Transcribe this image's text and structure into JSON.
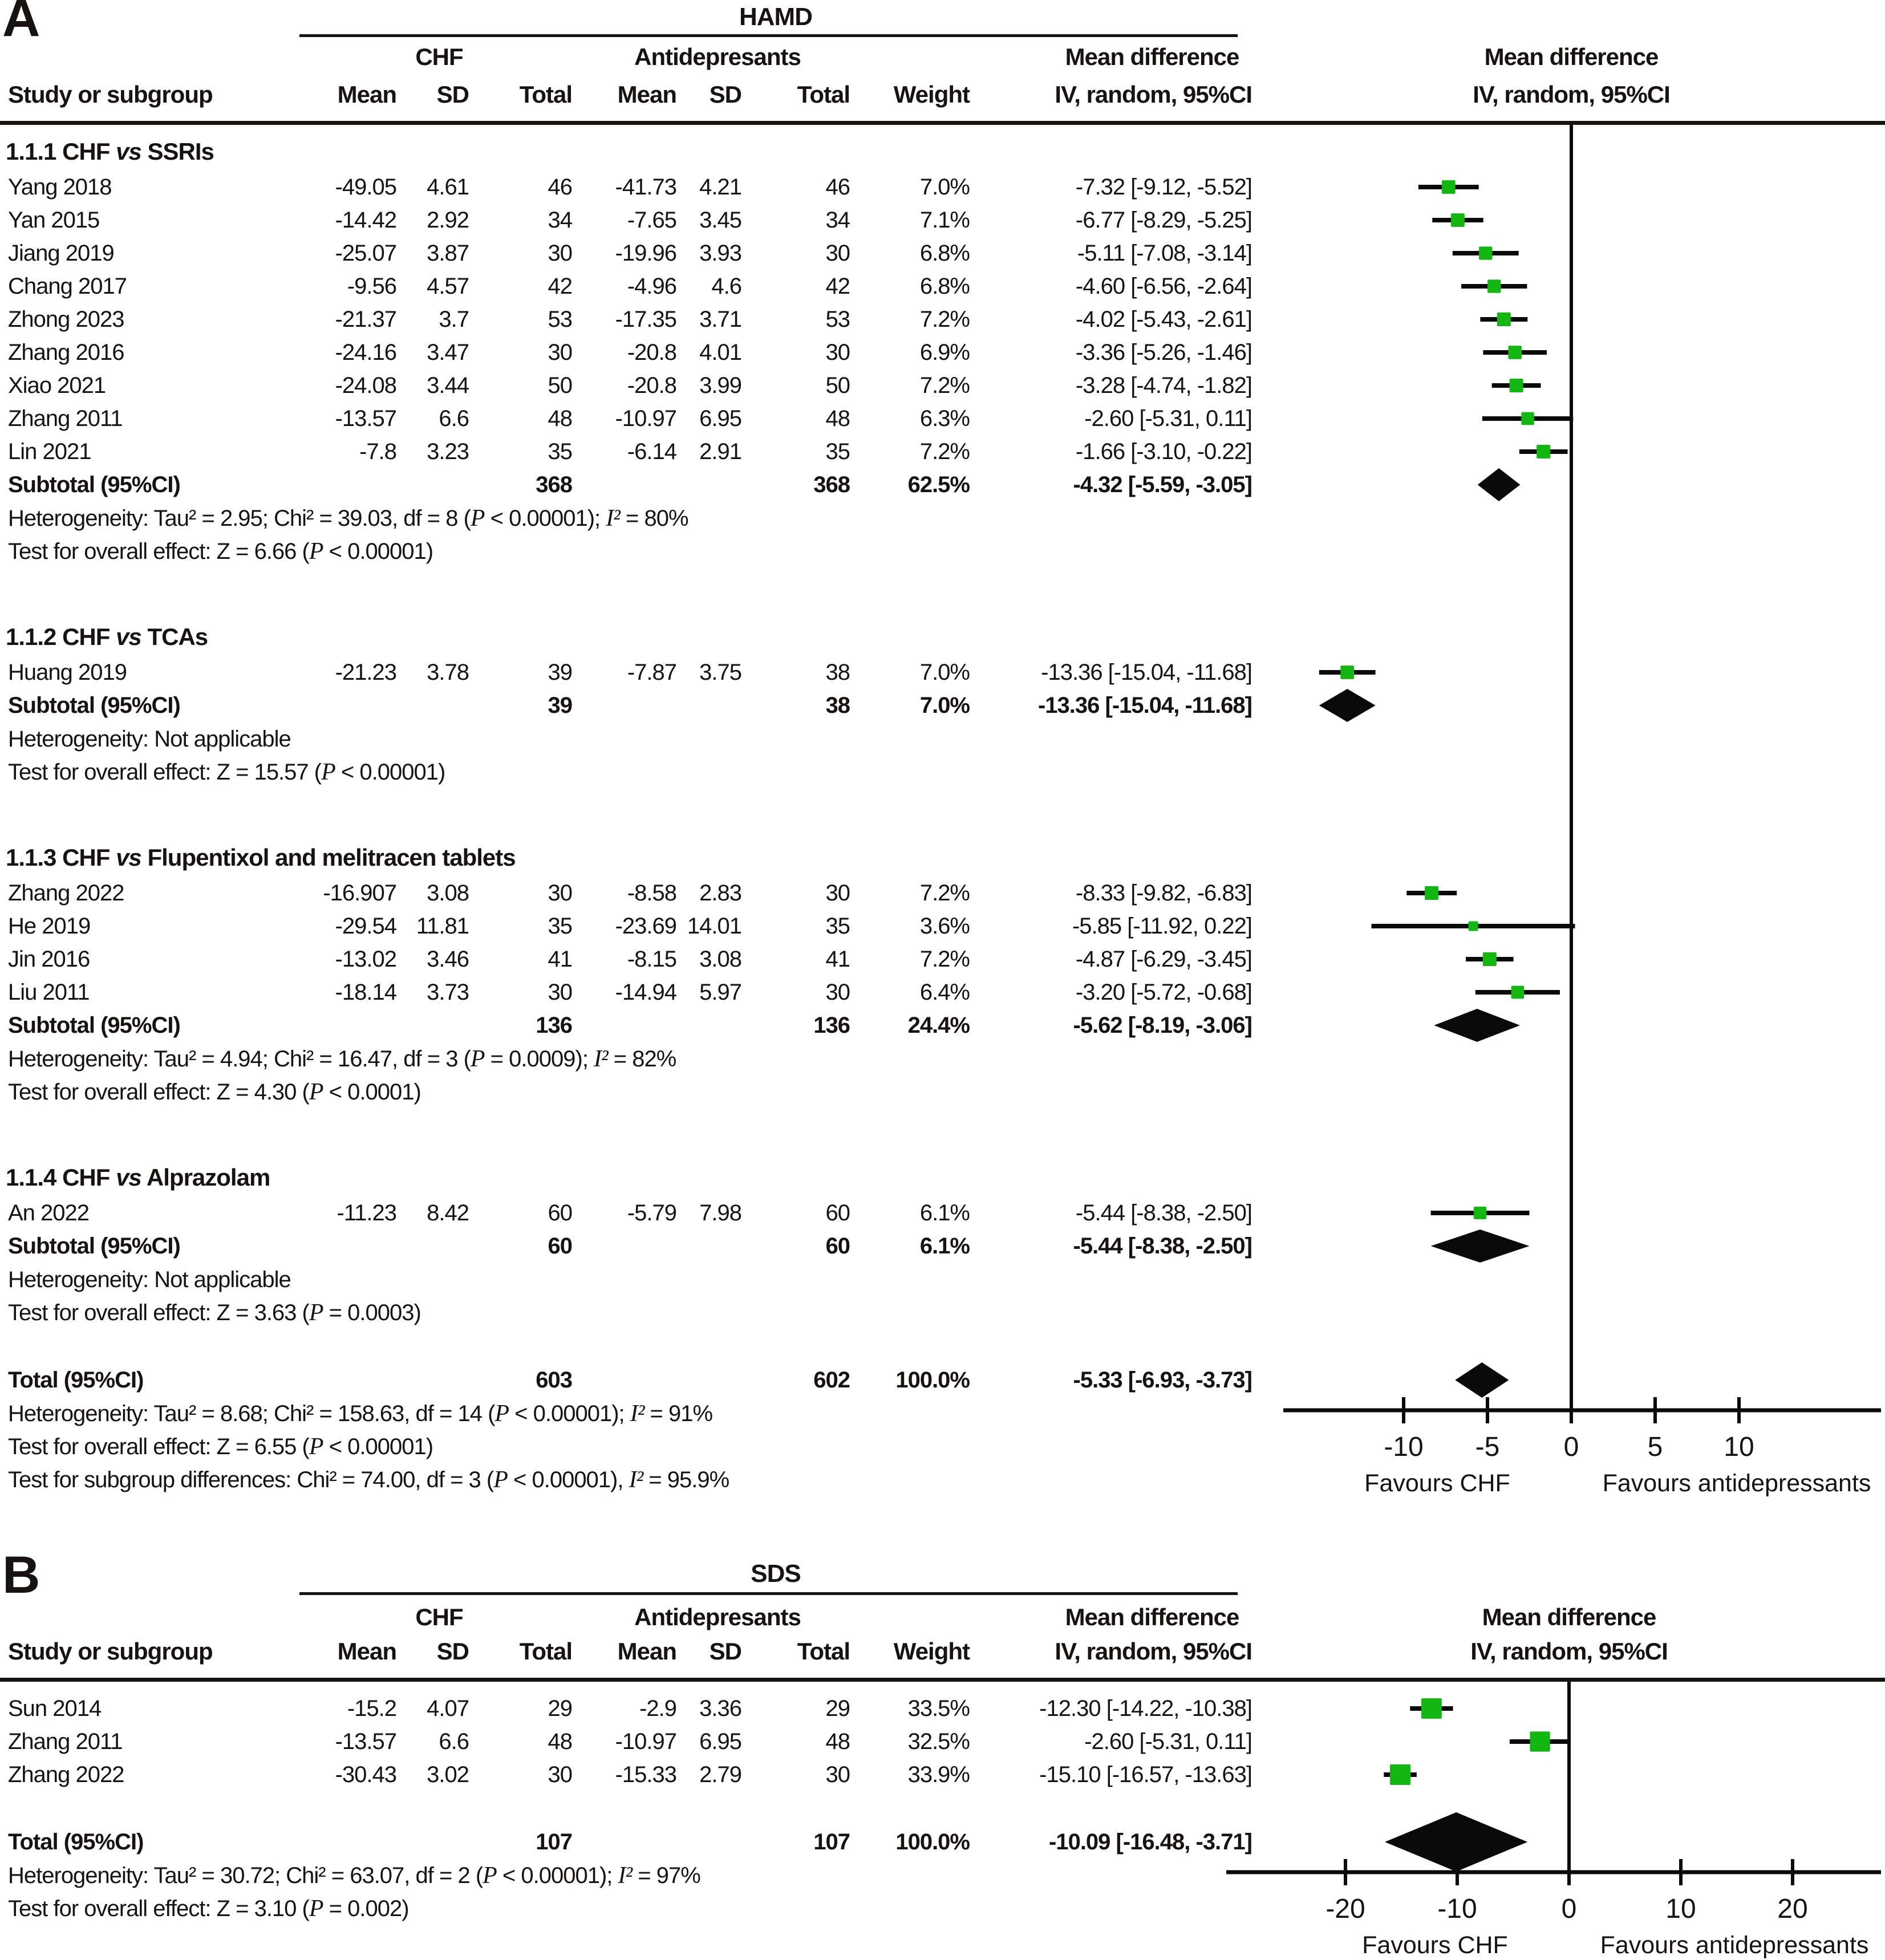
{
  "colors": {
    "marker_green": "#12b712",
    "shape_black": "#0a0a0a",
    "text": "#181310"
  },
  "chart_data": [
    {
      "type": "forest",
      "panel_label": "A",
      "title": "HAMD",
      "col_groups": {
        "exp": "CHF",
        "ctrl": "Antidepresants",
        "effect": "Mean difference"
      },
      "plot_header": [
        "Mean difference",
        "IV, random, 95%CI"
      ],
      "columns": [
        "Study or subgroup",
        "Mean",
        "SD",
        "Total",
        "Mean",
        "SD",
        "Total",
        "Weight",
        "IV, random, 95%CI"
      ],
      "axis": {
        "ticks": [
          -10,
          -5,
          0,
          5,
          10
        ],
        "favours_left": "Favours CHF",
        "favours_right": "Favours antidepressants"
      },
      "sections": [
        {
          "title": "1.1.1 CHF vs SSRIs",
          "studies": [
            {
              "study": "Yang 2018",
              "mean1": "-49.05",
              "sd1": "4.61",
              "n1": "46",
              "mean2": "-41.73",
              "sd2": "4.21",
              "n2": "46",
              "weight": "7.0%",
              "ci": "-7.32 [-9.12, -5.52]",
              "est": -7.32,
              "lo": -9.12,
              "hi": -5.52
            },
            {
              "study": "Yan 2015",
              "mean1": "-14.42",
              "sd1": "2.92",
              "n1": "34",
              "mean2": "-7.65",
              "sd2": "3.45",
              "n2": "34",
              "weight": "7.1%",
              "ci": "-6.77 [-8.29, -5.25]",
              "est": -6.77,
              "lo": -8.29,
              "hi": -5.25
            },
            {
              "study": "Jiang 2019",
              "mean1": "-25.07",
              "sd1": "3.87",
              "n1": "30",
              "mean2": "-19.96",
              "sd2": "3.93",
              "n2": "30",
              "weight": "6.8%",
              "ci": "-5.11 [-7.08, -3.14]",
              "est": -5.11,
              "lo": -7.08,
              "hi": -3.14
            },
            {
              "study": "Chang 2017",
              "mean1": "-9.56",
              "sd1": "4.57",
              "n1": "42",
              "mean2": "-4.96",
              "sd2": "4.6",
              "n2": "42",
              "weight": "6.8%",
              "ci": "-4.60 [-6.56, -2.64]",
              "est": -4.6,
              "lo": -6.56,
              "hi": -2.64
            },
            {
              "study": "Zhong 2023",
              "mean1": "-21.37",
              "sd1": "3.7",
              "n1": "53",
              "mean2": "-17.35",
              "sd2": "3.71",
              "n2": "53",
              "weight": "7.2%",
              "ci": "-4.02 [-5.43, -2.61]",
              "est": -4.02,
              "lo": -5.43,
              "hi": -2.61
            },
            {
              "study": "Zhang 2016",
              "mean1": "-24.16",
              "sd1": "3.47",
              "n1": "30",
              "mean2": "-20.8",
              "sd2": "4.01",
              "n2": "30",
              "weight": "6.9%",
              "ci": "-3.36 [-5.26, -1.46]",
              "est": -3.36,
              "lo": -5.26,
              "hi": -1.46
            },
            {
              "study": "Xiao 2021",
              "mean1": "-24.08",
              "sd1": "3.44",
              "n1": "50",
              "mean2": "-20.8",
              "sd2": "3.99",
              "n2": "50",
              "weight": "7.2%",
              "ci": "-3.28 [-4.74, -1.82]",
              "est": -3.28,
              "lo": -4.74,
              "hi": -1.82
            },
            {
              "study": "Zhang 2011",
              "mean1": "-13.57",
              "sd1": "6.6",
              "n1": "48",
              "mean2": "-10.97",
              "sd2": "6.95",
              "n2": "48",
              "weight": "6.3%",
              "ci": "-2.60 [-5.31, 0.11]",
              "est": -2.6,
              "lo": -5.31,
              "hi": 0.11
            },
            {
              "study": "Lin 2021",
              "mean1": "-7.8",
              "sd1": "3.23",
              "n1": "35",
              "mean2": "-6.14",
              "sd2": "2.91",
              "n2": "35",
              "weight": "7.2%",
              "ci": "-1.66 [-3.10, -0.22]",
              "est": -1.66,
              "lo": -3.1,
              "hi": -0.22
            }
          ],
          "subtotal": {
            "label": "Subtotal (95%CI)",
            "n1": "368",
            "n2": "368",
            "weight": "62.5%",
            "ci": "-4.32 [-5.59, -3.05]",
            "est": -4.32,
            "lo": -5.59,
            "hi": -3.05
          },
          "heterogeneity": "Heterogeneity: Tau² = 2.95; Chi² = 39.03, df = 8 (P < 0.00001); I² = 80%",
          "overall": "Test for overall effect: Z = 6.66 (P < 0.00001)"
        },
        {
          "title": "1.1.2 CHF vs TCAs",
          "studies": [
            {
              "study": "Huang 2019",
              "mean1": "-21.23",
              "sd1": "3.78",
              "n1": "39",
              "mean2": "-7.87",
              "sd2": "3.75",
              "n2": "38",
              "weight": "7.0%",
              "ci": "-13.36 [-15.04, -11.68]",
              "est": -13.36,
              "lo": -15.04,
              "hi": -11.68
            }
          ],
          "subtotal": {
            "label": "Subtotal (95%CI)",
            "n1": "39",
            "n2": "38",
            "weight": "7.0%",
            "ci": "-13.36 [-15.04, -11.68]",
            "est": -13.36,
            "lo": -15.04,
            "hi": -11.68
          },
          "heterogeneity": "Heterogeneity: Not applicable",
          "overall": "Test for overall effect: Z = 15.57 (P < 0.00001)"
        },
        {
          "title": "1.1.3 CHF vs Flupentixol and melitracen tablets",
          "studies": [
            {
              "study": "Zhang 2022",
              "mean1": "-16.907",
              "sd1": "3.08",
              "n1": "30",
              "mean2": "-8.58",
              "sd2": "2.83",
              "n2": "30",
              "weight": "7.2%",
              "ci": "-8.33 [-9.82, -6.83]",
              "est": -8.33,
              "lo": -9.82,
              "hi": -6.83
            },
            {
              "study": "He 2019",
              "mean1": "-29.54",
              "sd1": "11.81",
              "n1": "35",
              "mean2": "-23.69",
              "sd2": "14.01",
              "n2": "35",
              "weight": "3.6%",
              "ci": "-5.85 [-11.92, 0.22]",
              "est": -5.85,
              "lo": -11.92,
              "hi": 0.22
            },
            {
              "study": "Jin 2016",
              "mean1": "-13.02",
              "sd1": "3.46",
              "n1": "41",
              "mean2": "-8.15",
              "sd2": "3.08",
              "n2": "41",
              "weight": "7.2%",
              "ci": "-4.87 [-6.29, -3.45]",
              "est": -4.87,
              "lo": -6.29,
              "hi": -3.45
            },
            {
              "study": "Liu 2011",
              "mean1": "-18.14",
              "sd1": "3.73",
              "n1": "30",
              "mean2": "-14.94",
              "sd2": "5.97",
              "n2": "30",
              "weight": "6.4%",
              "ci": "-3.20 [-5.72, -0.68]",
              "est": -3.2,
              "lo": -5.72,
              "hi": -0.68
            }
          ],
          "subtotal": {
            "label": "Subtotal (95%CI)",
            "n1": "136",
            "n2": "136",
            "weight": "24.4%",
            "ci": "-5.62 [-8.19, -3.06]",
            "est": -5.62,
            "lo": -8.19,
            "hi": -3.06
          },
          "heterogeneity": "Heterogeneity: Tau² = 4.94; Chi² = 16.47, df = 3 (P = 0.0009); I² = 82%",
          "overall": "Test for overall effect: Z = 4.30 (P < 0.0001)"
        },
        {
          "title": "1.1.4 CHF vs Alprazolam",
          "studies": [
            {
              "study": "An 2022",
              "mean1": "-11.23",
              "sd1": "8.42",
              "n1": "60",
              "mean2": "-5.79",
              "sd2": "7.98",
              "n2": "60",
              "weight": "6.1%",
              "ci": "-5.44 [-8.38, -2.50]",
              "est": -5.44,
              "lo": -8.38,
              "hi": -2.5
            }
          ],
          "subtotal": {
            "label": "Subtotal (95%CI)",
            "n1": "60",
            "n2": "60",
            "weight": "6.1%",
            "ci": "-5.44 [-8.38, -2.50]",
            "est": -5.44,
            "lo": -8.38,
            "hi": -2.5
          },
          "heterogeneity": "Heterogeneity: Not applicable",
          "overall": "Test for overall effect: Z = 3.63 (P = 0.0003)"
        }
      ],
      "total": {
        "label": "Total (95%CI)",
        "n1": "603",
        "n2": "602",
        "weight": "100.0%",
        "ci": "-5.33 [-6.93, -3.73]",
        "est": -5.33,
        "lo": -6.93,
        "hi": -3.73
      },
      "total_heterogeneity": "Heterogeneity: Tau² = 8.68; Chi² = 158.63, df = 14 (P < 0.00001); I² = 91%",
      "total_overall": "Test for overall effect: Z = 6.55 (P < 0.00001)",
      "subgroup_diff": "Test for subgroup differences: Chi² = 74.00, df = 3 (P < 0.00001), I² = 95.9%"
    },
    {
      "type": "forest",
      "panel_label": "B",
      "title": "SDS",
      "col_groups": {
        "exp": "CHF",
        "ctrl": "Antidepresants",
        "effect": "Mean difference"
      },
      "plot_header": [
        "Mean difference",
        "IV, random, 95%CI"
      ],
      "columns": [
        "Study or subgroup",
        "Mean",
        "SD",
        "Total",
        "Mean",
        "SD",
        "Total",
        "Weight",
        "IV, random, 95%CI"
      ],
      "axis": {
        "ticks": [
          -20,
          -10,
          0,
          10,
          20
        ],
        "favours_left": "Favours CHF",
        "favours_right": "Favours antidepressants"
      },
      "sections": [
        {
          "title": null,
          "studies": [
            {
              "study": "Sun 2014",
              "mean1": "-15.2",
              "sd1": "4.07",
              "n1": "29",
              "mean2": "-2.9",
              "sd2": "3.36",
              "n2": "29",
              "weight": "33.5%",
              "ci": "-12.30 [-14.22, -10.38]",
              "est": -12.3,
              "lo": -14.22,
              "hi": -10.38
            },
            {
              "study": "Zhang 2011",
              "mean1": "-13.57",
              "sd1": "6.6",
              "n1": "48",
              "mean2": "-10.97",
              "sd2": "6.95",
              "n2": "48",
              "weight": "32.5%",
              "ci": "-2.60 [-5.31, 0.11]",
              "est": -2.6,
              "lo": -5.31,
              "hi": 0.11
            },
            {
              "study": "Zhang 2022",
              "mean1": "-30.43",
              "sd1": "3.02",
              "n1": "30",
              "mean2": "-15.33",
              "sd2": "2.79",
              "n2": "30",
              "weight": "33.9%",
              "ci": "-15.10 [-16.57, -13.63]",
              "est": -15.1,
              "lo": -16.57,
              "hi": -13.63
            }
          ],
          "subtotal": null,
          "heterogeneity": null,
          "overall": null
        }
      ],
      "total": {
        "label": "Total (95%CI)",
        "n1": "107",
        "n2": "107",
        "weight": "100.0%",
        "ci": "-10.09 [-16.48, -3.71]",
        "est": -10.09,
        "lo": -16.48,
        "hi": -3.71
      },
      "total_heterogeneity": "Heterogeneity: Tau² = 30.72; Chi² = 63.07, df = 2 (P < 0.00001); I² = 97%",
      "total_overall": "Test for overall effect: Z = 3.10 (P = 0.002)",
      "subgroup_diff": null
    }
  ]
}
